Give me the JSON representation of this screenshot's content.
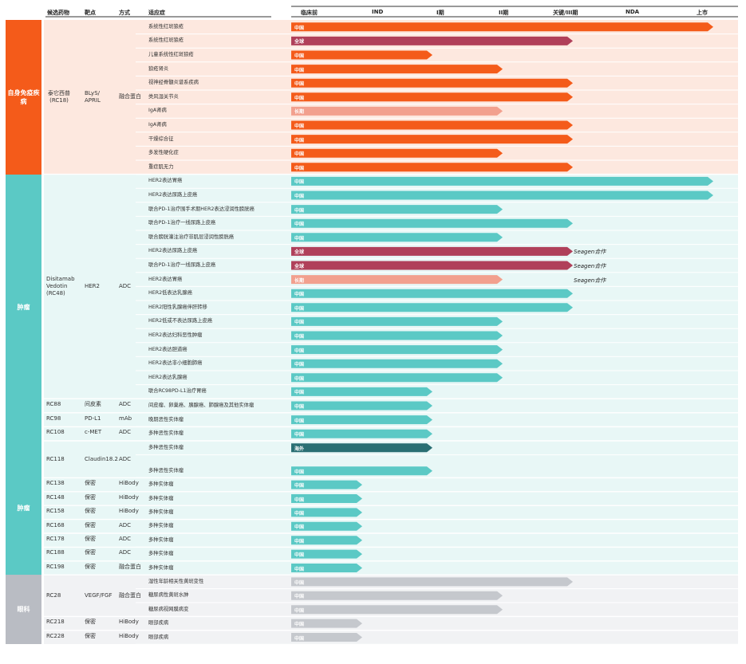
{
  "header": {
    "candidate": "候选药物",
    "target": "靶点",
    "modality": "方式",
    "indication": "适应症"
  },
  "colors": {
    "china": "#f45b1a",
    "global": "#b0405a",
    "long_term": "#f2a08e",
    "oncology": "#5bc9c5",
    "overseas": "#2a6f73",
    "ophthalmology": "#c5c8cd",
    "autoimmune_section": "#f45b1a",
    "oncology_section": "#5bc9c5",
    "ophthalmology_section": "#b9bcc3",
    "autoimmune_bg": "#fde8df",
    "oncology_bg": "#e8f7f6",
    "ophthalmology_bg": "#f1f2f4"
  },
  "chart_data": {
    "type": "bar",
    "title": "",
    "phases": [
      "临床前",
      "IND",
      "I期",
      "II期",
      "关键/III期",
      "NDA",
      "上市"
    ],
    "sections": [
      {
        "name": "自身免疫疾病",
        "color": "#f45b1a"
      },
      {
        "name": "肿瘤",
        "color": "#5bc9c5"
      },
      {
        "name": "肿瘤",
        "color": "#5bc9c5"
      },
      {
        "name": "眼科",
        "color": "#b9bcc3"
      }
    ],
    "drug_groups": [
      {
        "candidate": "泰它西普\n(RC18)",
        "target": "BLyS/\nAPRIL",
        "modality": "融合蛋白"
      },
      {
        "candidate": "Disitamab\nVedotin\n(RC48)",
        "target": "HER2",
        "modality": "ADC"
      },
      {
        "candidate": "RC88",
        "target": "间皮素",
        "modality": "ADC"
      },
      {
        "candidate": "RC98",
        "target": "PD-L1",
        "modality": "mAb"
      },
      {
        "candidate": "RC108",
        "target": "c-MET",
        "modality": "ADC"
      },
      {
        "candidate": "RC118",
        "target": "Claudin18.2",
        "modality": "ADC"
      },
      {
        "candidate": "RC138",
        "target": "保密",
        "modality": "HiBody"
      },
      {
        "candidate": "RC148",
        "target": "保密",
        "modality": "HiBody"
      },
      {
        "candidate": "RC158",
        "target": "保密",
        "modality": "HiBody"
      },
      {
        "candidate": "RC168",
        "target": "保密",
        "modality": "ADC"
      },
      {
        "candidate": "RC178",
        "target": "保密",
        "modality": "ADC"
      },
      {
        "candidate": "RC188",
        "target": "保密",
        "modality": "ADC"
      },
      {
        "candidate": "RC198",
        "target": "保密",
        "modality": "融合蛋白"
      },
      {
        "candidate": "RC28",
        "target": "VEGF/FGF",
        "modality": "融合蛋白"
      },
      {
        "candidate": "RC218",
        "target": "保密",
        "modality": "HiBody"
      },
      {
        "candidate": "RC228",
        "target": "保密",
        "modality": "HiBody"
      }
    ],
    "rows": [
      {
        "indication": "系统性红斑狼疮",
        "phase": 6.0,
        "label": "中国",
        "color": "#f45b1a"
      },
      {
        "indication": "系统性红斑狼疮",
        "phase": 4.0,
        "label": "全球",
        "color": "#b0405a"
      },
      {
        "indication": "儿童系统性红斑狼疮",
        "phase": 2.0,
        "label": "中国",
        "color": "#f45b1a"
      },
      {
        "indication": "狼疮肾炎",
        "phase": 3.0,
        "label": "中国",
        "color": "#f45b1a"
      },
      {
        "indication": "视神经脊髓炎谱系疾病",
        "phase": 4.0,
        "label": "中国",
        "color": "#f45b1a"
      },
      {
        "indication": "类风湿关节炎",
        "phase": 4.0,
        "label": "中国",
        "color": "#f45b1a"
      },
      {
        "indication": "IgA肾病",
        "phase": 3.0,
        "label": "长期",
        "color": "#f2a08e"
      },
      {
        "indication": "IgA肾病",
        "phase": 4.0,
        "label": "中国",
        "color": "#f45b1a"
      },
      {
        "indication": "干燥综合征",
        "phase": 4.0,
        "label": "中国",
        "color": "#f45b1a"
      },
      {
        "indication": "多发性硬化症",
        "phase": 3.0,
        "label": "中国",
        "color": "#f45b1a"
      },
      {
        "indication": "重症肌无力",
        "phase": 4.0,
        "label": "中国",
        "color": "#f45b1a"
      },
      {
        "indication": "HER2表达胃癌",
        "phase": 6.0,
        "label": "中国",
        "color": "#5bc9c5"
      },
      {
        "indication": "HER2表达尿路上皮癌",
        "phase": 6.0,
        "label": "中国",
        "color": "#5bc9c5"
      },
      {
        "indication": "联合PD-1治疗围手术期HER2表达浸润性膀胱癌",
        "phase": 3.0,
        "label": "中国",
        "color": "#5bc9c5"
      },
      {
        "indication": "联合PD-1治疗一线尿路上皮癌",
        "phase": 4.0,
        "label": "中国",
        "color": "#5bc9c5"
      },
      {
        "indication": "联合膀胱灌注治疗非肌层浸润性膀胱癌",
        "phase": 3.0,
        "label": "中国",
        "color": "#5bc9c5"
      },
      {
        "indication": "HER2表达尿路上皮癌",
        "phase": 4.0,
        "label": "全球",
        "color": "#b0405a",
        "note": "Seagen合作"
      },
      {
        "indication": "联合PD-1治疗一线尿路上皮癌",
        "phase": 4.0,
        "label": "全球",
        "color": "#b0405a",
        "note": "Seagen合作"
      },
      {
        "indication": "HER2表达胃癌",
        "phase": 3.0,
        "label": "长期",
        "color": "#f2a08e",
        "note": "Seagen合作"
      },
      {
        "indication": "HER2低表达乳腺癌",
        "phase": 4.0,
        "label": "中国",
        "color": "#5bc9c5"
      },
      {
        "indication": "HER2阳性乳腺癌伴肝转移",
        "phase": 4.0,
        "label": "中国",
        "color": "#5bc9c5"
      },
      {
        "indication": "HER2低或不表达尿路上皮癌",
        "phase": 3.0,
        "label": "中国",
        "color": "#5bc9c5"
      },
      {
        "indication": "HER2表达妇科恶性肿瘤",
        "phase": 3.0,
        "label": "中国",
        "color": "#5bc9c5"
      },
      {
        "indication": "HER2表达胆道癌",
        "phase": 3.0,
        "label": "中国",
        "color": "#5bc9c5"
      },
      {
        "indication": "HER2表达非小细胞肺癌",
        "phase": 3.0,
        "label": "中国",
        "color": "#5bc9c5"
      },
      {
        "indication": "HER2表达乳腺癌",
        "phase": 3.0,
        "label": "中国",
        "color": "#5bc9c5"
      },
      {
        "indication": "联合RC98PD-L1治疗胃癌",
        "phase": 2.0,
        "label": "中国",
        "color": "#5bc9c5"
      },
      {
        "indication": "间皮瘤、卵巢癌、胰腺癌、肺腺癌及其他实体瘤",
        "phase": 2.0,
        "label": "中国",
        "color": "#5bc9c5"
      },
      {
        "indication": "晚期恶性实体瘤",
        "phase": 2.0,
        "label": "中国",
        "color": "#5bc9c5"
      },
      {
        "indication": "多种恶性实体瘤",
        "phase": 2.0,
        "label": "中国",
        "color": "#5bc9c5"
      },
      {
        "indication": "多种恶性实体瘤",
        "phase": 2.0,
        "label": "海外",
        "color": "#2a6f73"
      },
      {
        "indication": "多种恶性实体瘤",
        "phase": 2.0,
        "label": "中国",
        "color": "#5bc9c5"
      },
      {
        "indication": "多种实体瘤",
        "phase": 1.0,
        "label": "中国",
        "color": "#5bc9c5"
      },
      {
        "indication": "多种实体瘤",
        "phase": 1.0,
        "label": "中国",
        "color": "#5bc9c5"
      },
      {
        "indication": "多种实体瘤",
        "phase": 1.0,
        "label": "中国",
        "color": "#5bc9c5"
      },
      {
        "indication": "多种实体瘤",
        "phase": 1.0,
        "label": "中国",
        "color": "#5bc9c5"
      },
      {
        "indication": "多种实体瘤",
        "phase": 1.0,
        "label": "中国",
        "color": "#5bc9c5"
      },
      {
        "indication": "多种实体瘤",
        "phase": 1.0,
        "label": "中国",
        "color": "#5bc9c5"
      },
      {
        "indication": "多种实体瘤",
        "phase": 1.0,
        "label": "中国",
        "color": "#5bc9c5"
      },
      {
        "indication": "湿性年龄相关性黄斑变性",
        "phase": 4.0,
        "label": "中国",
        "color": "#c5c8cd"
      },
      {
        "indication": "糖尿病性黄斑水肿",
        "phase": 3.0,
        "label": "中国",
        "color": "#c5c8cd"
      },
      {
        "indication": "糖尿病视网膜病变",
        "phase": 3.0,
        "label": "中国",
        "color": "#c5c8cd"
      },
      {
        "indication": "眼部疾病",
        "phase": 1.0,
        "label": "中国",
        "color": "#c5c8cd"
      },
      {
        "indication": "眼部疾病",
        "phase": 1.0,
        "label": "中国",
        "color": "#c5c8cd"
      }
    ]
  }
}
